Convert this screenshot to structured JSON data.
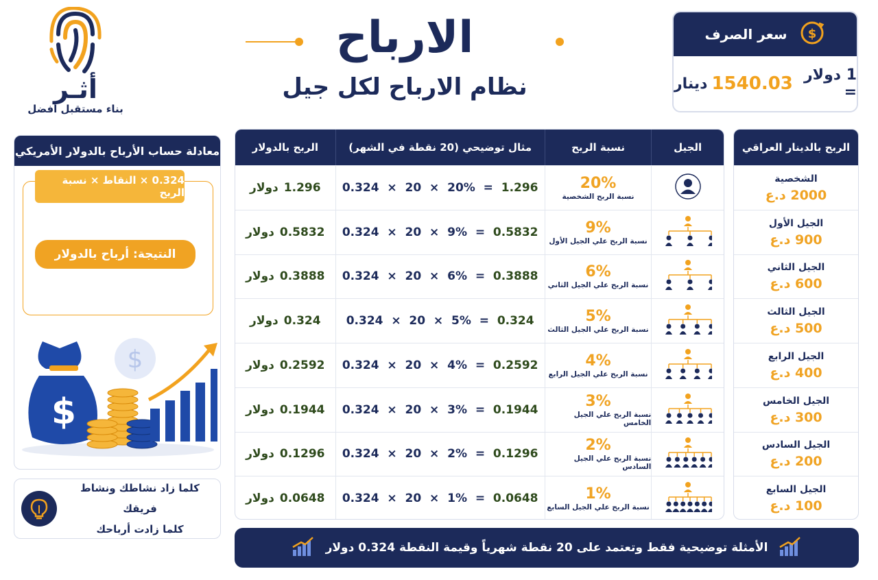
{
  "brand": {
    "name": "أثـر",
    "tagline": "بناء مستقبل أفضل"
  },
  "header": {
    "title": "الارباح",
    "subtitle": "نظام الارباح لكل جيل"
  },
  "exchange": {
    "title": "سعر الصرف",
    "prefix": "1 دولار =",
    "rate": "1540.03",
    "unit": "دينار"
  },
  "equation_card": {
    "title": "معادلة حساب الأرباح بالدولار الأمريكي",
    "formula": "0.324 × النقاط × نسبة الربح",
    "result": "النتيجة: أرباح بالدولار"
  },
  "tip": {
    "line1": "كلما زاد نشاطك ونشاط فريقك",
    "line2": "كلما زادت أرباحك"
  },
  "table": {
    "headers": {
      "usd": "الربح بالدولار",
      "example": "مثال توضيحي (20 نقطة في الشهر)",
      "rate": "نسبة الربح",
      "generation": "الجيل"
    },
    "rows": [
      {
        "usd": "1.296",
        "usd_unit": "دولار",
        "result": "1.296",
        "pct": "20%",
        "points": "20",
        "point_value": "0.324",
        "desc": "نسبة الربح الشخصية"
      },
      {
        "usd": "0.5832",
        "usd_unit": "دولار",
        "result": "0.5832",
        "pct": "9%",
        "points": "20",
        "point_value": "0.324",
        "desc": "نسبة الربح علي الجيل الأول"
      },
      {
        "usd": "0.3888",
        "usd_unit": "دولار",
        "result": "0.3888",
        "pct": "6%",
        "points": "20",
        "point_value": "0.324",
        "desc": "نسبة الربح علي الجيل الثاني"
      },
      {
        "usd": "0.324",
        "usd_unit": "دولار",
        "result": "0.324",
        "pct": "5%",
        "points": "20",
        "point_value": "0.324",
        "desc": "نسبة الربح علي الجيل الثالث"
      },
      {
        "usd": "0.2592",
        "usd_unit": "دولار",
        "result": "0.2592",
        "pct": "4%",
        "points": "20",
        "point_value": "0.324",
        "desc": "نسبة الربح علي الجيل الرابع"
      },
      {
        "usd": "0.1944",
        "usd_unit": "دولار",
        "result": "0.1944",
        "pct": "3%",
        "points": "20",
        "point_value": "0.324",
        "desc": "نسبة الربح علي الجيل الخامس"
      },
      {
        "usd": "0.1296",
        "usd_unit": "دولار",
        "result": "0.1296",
        "pct": "2%",
        "points": "20",
        "point_value": "0.324",
        "desc": "نسبة الربح علي الجيل السادس"
      },
      {
        "usd": "0.0648",
        "usd_unit": "دولار",
        "result": "0.0648",
        "pct": "1%",
        "points": "20",
        "point_value": "0.324",
        "desc": "نسبة الربح علي الجيل السابع"
      }
    ]
  },
  "iqd": {
    "title": "الربح بالدينار العراقي",
    "rows": [
      {
        "name": "الشخصية",
        "value": "2000 د.ع"
      },
      {
        "name": "الجيل الأول",
        "value": "900 د.ع"
      },
      {
        "name": "الجيل الثاني",
        "value": "600 د.ع"
      },
      {
        "name": "الجيل الثالث",
        "value": "500 د.ع"
      },
      {
        "name": "الجيل الرابع",
        "value": "400 د.ع"
      },
      {
        "name": "الجيل الخامس",
        "value": "300 د.ع"
      },
      {
        "name": "الجيل السادس",
        "value": "200 د.ع"
      },
      {
        "name": "الجيل السابع",
        "value": "100 د.ع"
      }
    ]
  },
  "footer": {
    "text": "الأمثلة توضيحية فقط وتعتمد على 20 نقطة شهرياً وقيمة النقطة 0.324 دولار"
  },
  "colors": {
    "navy": "#1c2a5a",
    "orange": "#f2a21e",
    "green": "#2e4a1c"
  },
  "icons": [
    "fingerprint-logo-icon",
    "dollar-exchange-icon",
    "person-icon",
    "hierarchy-icon",
    "money-bag-icon",
    "lightbulb-icon",
    "growth-chart-icon"
  ]
}
